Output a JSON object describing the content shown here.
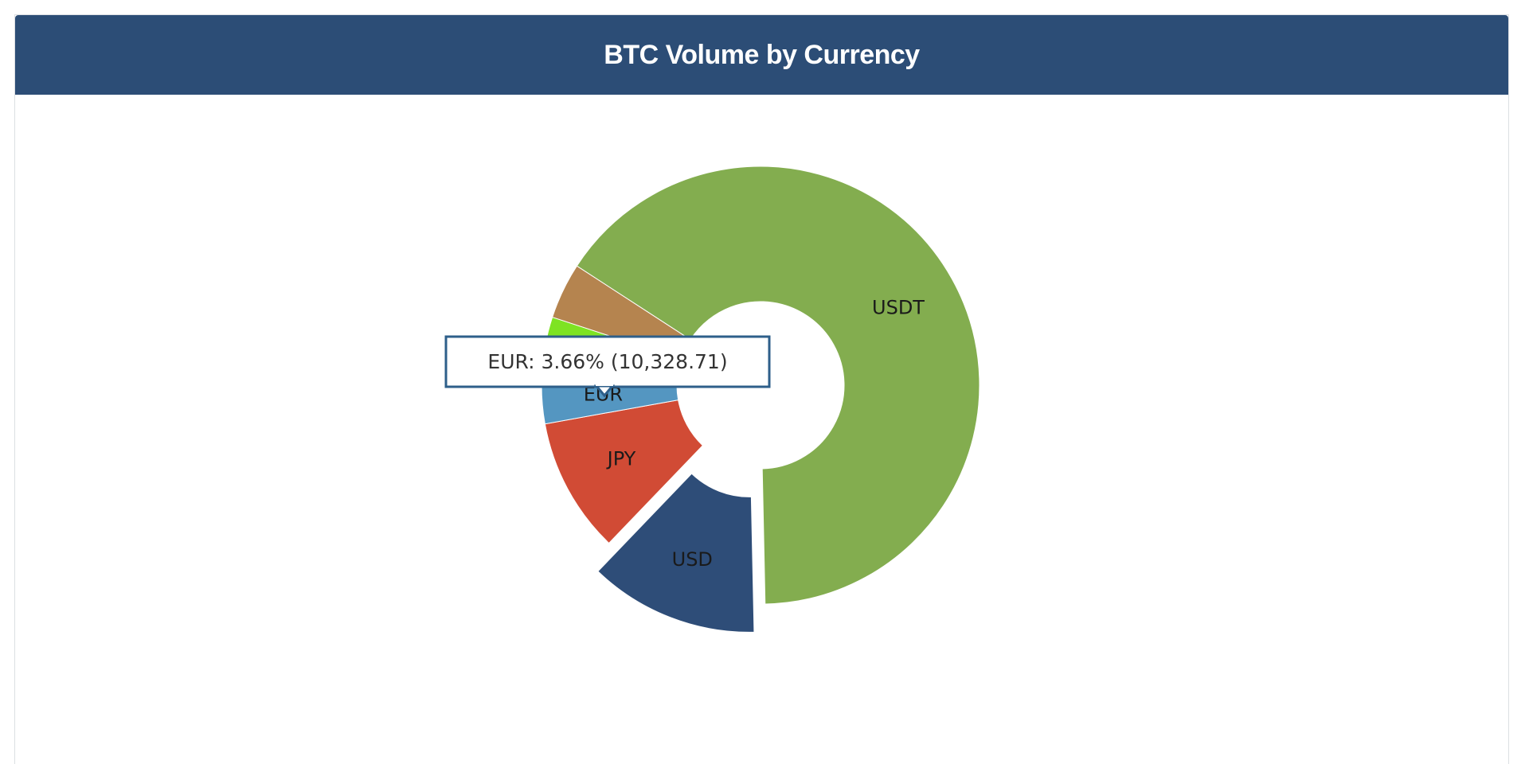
{
  "chart_data": {
    "type": "pie",
    "title": "BTC Volume by Currency",
    "categories": [
      "USDT",
      "USD",
      "JPY",
      "EUR",
      null,
      null
    ],
    "values": [
      65.5,
      12.5,
      10,
      3.66,
      4.2,
      4.14
    ],
    "colors": [
      "#83ad4f",
      "#2e4d78",
      "#d14b35",
      "#5496c1",
      "#7ee323",
      "#b5844f"
    ],
    "tooltip": "EUR: 3.66% (10,328.71)"
  }
}
